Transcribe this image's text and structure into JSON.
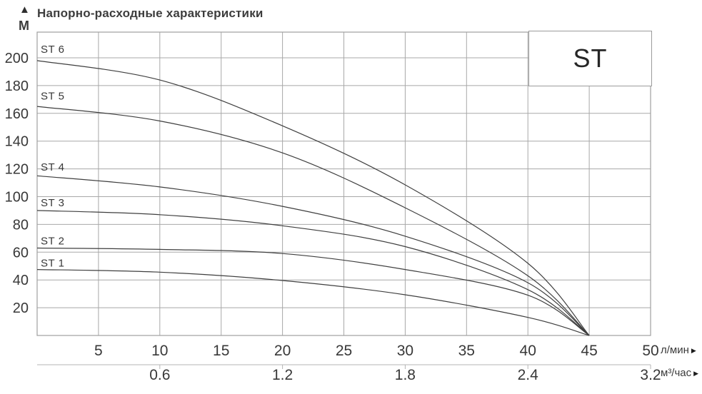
{
  "header": {
    "title": "Напорно-расходные характеристики",
    "up_arrow": "▲",
    "y_unit": "М"
  },
  "badge": {
    "label": "ST"
  },
  "axes": {
    "y_ticks": [
      200,
      180,
      160,
      140,
      120,
      100,
      80,
      60,
      40,
      20
    ],
    "x_ticks": [
      5,
      10,
      15,
      20,
      25,
      30,
      35,
      40,
      45,
      50
    ],
    "primary_unit": "л/мин",
    "secondary_unit": "м³/час",
    "unit_arrow": "▶",
    "secondary_ticks": [
      {
        "label": "0.6",
        "q": 10
      },
      {
        "label": "1.2",
        "q": 20
      },
      {
        "label": "1.8",
        "q": 30
      },
      {
        "label": "2.4",
        "q": 40
      },
      {
        "label": "3.2",
        "q": 50
      }
    ]
  },
  "chart_data": {
    "type": "line",
    "title": "Напорно-расходные характеристики",
    "xlabel_primary": "л/мин",
    "xlabel_secondary": "м³/час",
    "ylabel": "М",
    "xlim": [
      0,
      50
    ],
    "ylim": [
      0,
      218.5
    ],
    "grid": true,
    "legend_position": "inline-labels-left",
    "badge": "ST",
    "convergence_point": [
      45,
      0
    ],
    "secondary_axis_map": "0.6 м³/час = 10 л/мин; 1.2 = 20; 1.8 = 30; 2.4 = 40; 3.2 shown at 50",
    "series": [
      {
        "name": "ST 6",
        "points": [
          [
            0,
            198
          ],
          [
            10,
            184
          ],
          [
            20,
            151
          ],
          [
            30,
            108.5
          ],
          [
            40,
            52
          ],
          [
            45,
            0
          ]
        ]
      },
      {
        "name": "ST 5",
        "points": [
          [
            0,
            165
          ],
          [
            10,
            154.5
          ],
          [
            20,
            131.5
          ],
          [
            30,
            92
          ],
          [
            40,
            43
          ],
          [
            45,
            0
          ]
        ]
      },
      {
        "name": "ST 4",
        "points": [
          [
            0,
            115
          ],
          [
            10,
            107
          ],
          [
            20,
            93
          ],
          [
            30,
            71.5
          ],
          [
            40,
            38
          ],
          [
            45,
            0
          ]
        ]
      },
      {
        "name": "ST 3",
        "points": [
          [
            0,
            90
          ],
          [
            10,
            87
          ],
          [
            20,
            79
          ],
          [
            30,
            64
          ],
          [
            40,
            33
          ],
          [
            45,
            0
          ]
        ]
      },
      {
        "name": "ST 2",
        "points": [
          [
            0,
            63
          ],
          [
            10,
            62
          ],
          [
            20,
            59
          ],
          [
            30,
            47.5
          ],
          [
            40,
            29
          ],
          [
            45,
            0
          ]
        ]
      },
      {
        "name": "ST 1",
        "points": [
          [
            0,
            47.5
          ],
          [
            10,
            45.6
          ],
          [
            20,
            39.6
          ],
          [
            30,
            29.3
          ],
          [
            40,
            13
          ],
          [
            45,
            0
          ]
        ]
      }
    ]
  },
  "colors": {
    "background": "#ffffff",
    "grid": "#a8a8a8",
    "frame": "#9f9f9f",
    "curve": "#3f3f3f",
    "text": "#383838",
    "secondary_axis": "#b5b5b5"
  }
}
